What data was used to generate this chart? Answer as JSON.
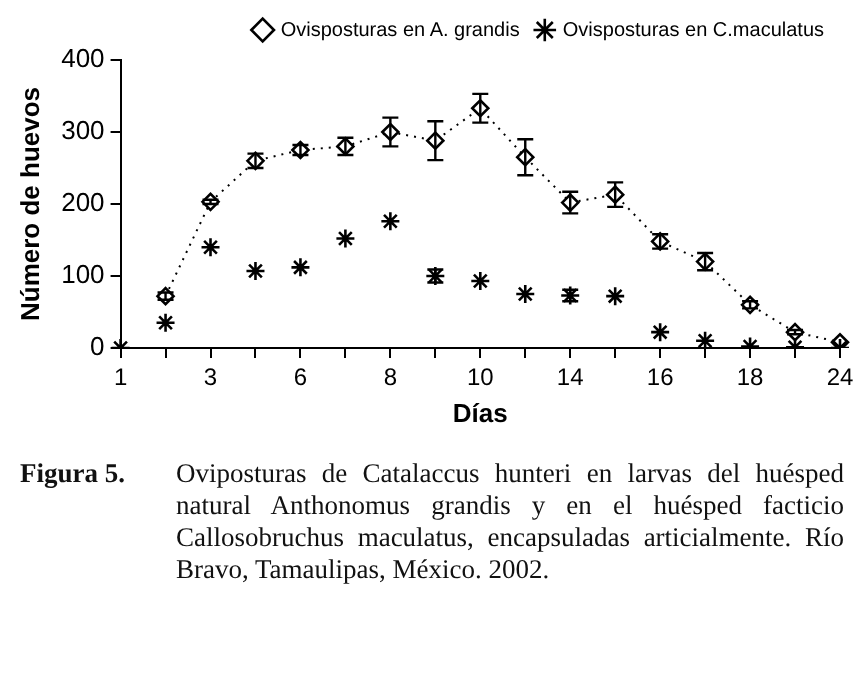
{
  "chart_data": {
    "type": "line",
    "xlabel": "Días",
    "ylabel": "Número de huevos",
    "categories": [
      "1",
      null,
      "3",
      null,
      "6",
      null,
      "8",
      null,
      "10",
      null,
      "14",
      null,
      "16",
      null,
      "18",
      null,
      "24"
    ],
    "ylim": [
      0,
      400
    ],
    "yticks": [
      0,
      100,
      200,
      300,
      400
    ],
    "grid": false,
    "legend": "top right",
    "series": [
      {
        "name": "Ovisposturas en A. grandis",
        "color": "#000000",
        "marker": "diamond",
        "line_style": "dotted",
        "values": [
          null,
          72,
          203,
          260,
          275,
          280,
          300,
          288,
          333,
          265,
          202,
          213,
          148,
          120,
          60,
          22,
          8
        ],
        "errors": [
          null,
          5,
          3,
          10,
          7,
          12,
          20,
          27,
          20,
          25,
          15,
          17,
          10,
          12,
          5,
          3,
          null
        ]
      },
      {
        "name": "Ovisposturas en C.maculatus",
        "color": "#000000",
        "type": "scatter",
        "marker": "cross",
        "values": [
          0,
          35,
          140,
          107,
          112,
          152,
          176,
          100,
          93,
          75,
          73,
          72,
          22,
          10,
          2,
          1,
          0
        ],
        "errors": [
          null,
          null,
          null,
          null,
          null,
          null,
          null,
          9,
          null,
          null,
          8,
          null,
          null,
          null,
          null,
          null,
          null
        ]
      }
    ],
    "annotations": [
      "Figura 5.",
      "Oviposturas de Catalaccus hunteri en larvas del huésped natural Anthonomus grandis y en el huésped facticio Callosobruchus maculatus, encapsuladas articialmente. Río Bravo, Tamaulipas, México. 2002."
    ]
  }
}
